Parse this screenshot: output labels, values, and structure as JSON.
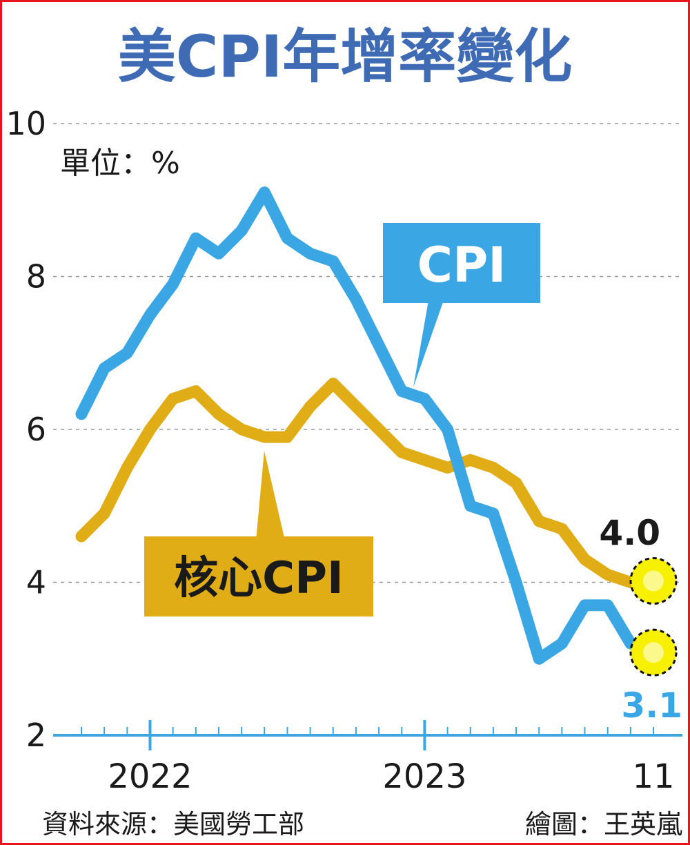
{
  "chart_data": {
    "type": "line",
    "title": "美CPI年增率變化",
    "unit_label": "單位：%",
    "y_ticks": [
      "10",
      "8",
      "6",
      "4",
      "2"
    ],
    "ylim": [
      2,
      10
    ],
    "grid": true,
    "x_tick_labels": [
      {
        "label": "2022",
        "month": "2022-01"
      },
      {
        "label": "2023",
        "month": "2023-01"
      },
      {
        "label": "11",
        "month": "2023-11"
      }
    ],
    "x": [
      "2021-10",
      "2021-11",
      "2021-12",
      "2022-01",
      "2022-02",
      "2022-03",
      "2022-04",
      "2022-05",
      "2022-06",
      "2022-07",
      "2022-08",
      "2022-09",
      "2022-10",
      "2022-11",
      "2022-12",
      "2023-01",
      "2023-02",
      "2023-03",
      "2023-04",
      "2023-05",
      "2023-06",
      "2023-07",
      "2023-08",
      "2023-09",
      "2023-10",
      "2023-11"
    ],
    "series": [
      {
        "name": "CPI",
        "color": "#3aa6e3",
        "values": [
          6.2,
          6.8,
          7.0,
          7.5,
          7.9,
          8.5,
          8.3,
          8.6,
          9.1,
          8.5,
          8.3,
          8.2,
          7.7,
          7.1,
          6.5,
          6.4,
          6.0,
          5.0,
          4.9,
          4.0,
          3.0,
          3.2,
          3.7,
          3.7,
          3.2,
          3.1
        ],
        "end_label": "3.1",
        "end_label_color": "#3aa6e3"
      },
      {
        "name": "核心CPI",
        "color": "#e0ad16",
        "values": [
          4.6,
          4.9,
          5.5,
          6.0,
          6.4,
          6.5,
          6.2,
          6.0,
          5.9,
          5.9,
          6.3,
          6.6,
          6.3,
          6.0,
          5.7,
          5.6,
          5.5,
          5.6,
          5.5,
          5.3,
          4.8,
          4.7,
          4.3,
          4.1,
          4.0,
          4.0
        ],
        "end_label": "4.0",
        "end_label_color": "#1a1a1a"
      }
    ],
    "highlight_color": "#f7f000"
  },
  "footer": {
    "source": "資料來源：美國勞工部",
    "credit": "繪圖：王英嵐"
  }
}
